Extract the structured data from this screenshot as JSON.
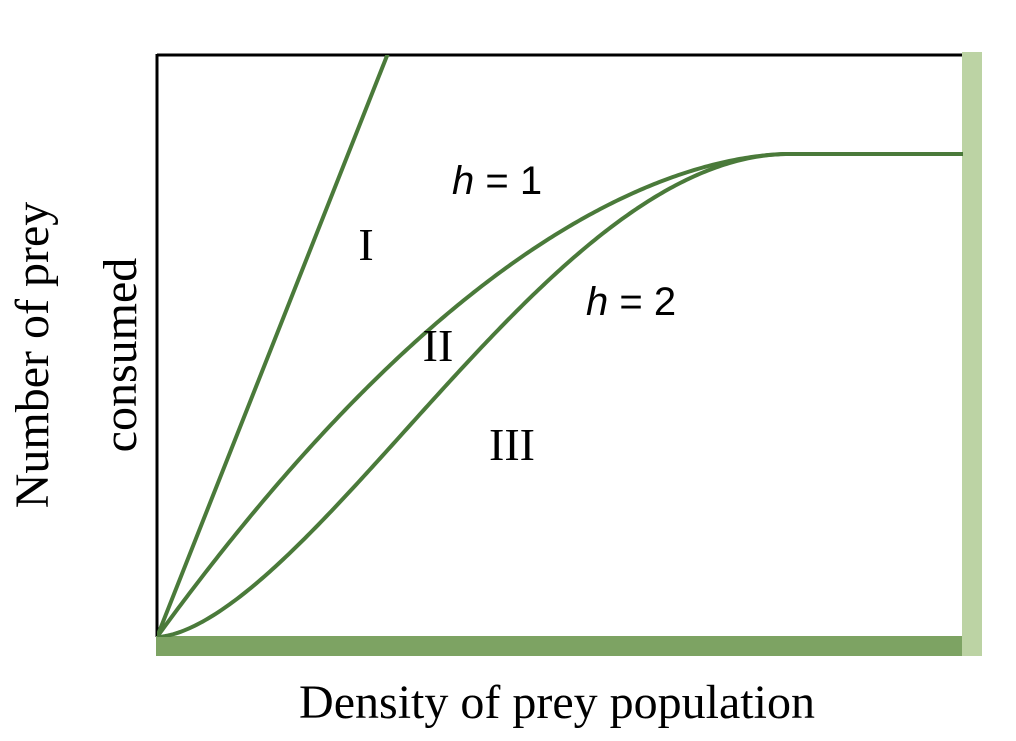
{
  "chart_data": {
    "type": "line",
    "title": "",
    "xlabel": "Density of prey population",
    "ylabel_lines": [
      "Number of prey",
      "consumed"
    ],
    "xlim": [
      0,
      10
    ],
    "ylim": [
      0,
      10
    ],
    "plateau": 8.3,
    "series": [
      {
        "name": "I",
        "label": "I",
        "kind": "linear",
        "slope": 3.5,
        "x": [
          0,
          3.33
        ],
        "y": [
          0,
          11.7
        ]
      },
      {
        "name": "II",
        "label": "II",
        "kind": "saturating",
        "h": 1,
        "sat_x": 7.85,
        "x": [
          0,
          1,
          2,
          3,
          4,
          5,
          6,
          7,
          7.85,
          10
        ],
        "y": [
          0,
          2.3,
          4.1,
          5.5,
          6.6,
          7.4,
          7.9,
          8.2,
          8.3,
          8.3
        ]
      },
      {
        "name": "III",
        "label": "III",
        "kind": "sigmoidal",
        "h": 2,
        "sat_x": 7.85,
        "x": [
          0,
          1,
          2,
          3,
          4,
          5,
          6,
          7,
          7.85,
          10
        ],
        "y": [
          0,
          0.2,
          0.9,
          2.4,
          4.3,
          6.0,
          7.2,
          8.0,
          8.3,
          8.3
        ]
      }
    ],
    "annotations": [
      {
        "id": "h1",
        "var": "h",
        "rest": " = 1"
      },
      {
        "id": "h2",
        "var": "h",
        "rest": " = 2"
      }
    ],
    "colors": {
      "curve": "#4a7a3a",
      "x_bar": "#7da363",
      "right_bar": "#bcd3a4",
      "axis": "#000000"
    },
    "grid": false,
    "legend": "none"
  }
}
